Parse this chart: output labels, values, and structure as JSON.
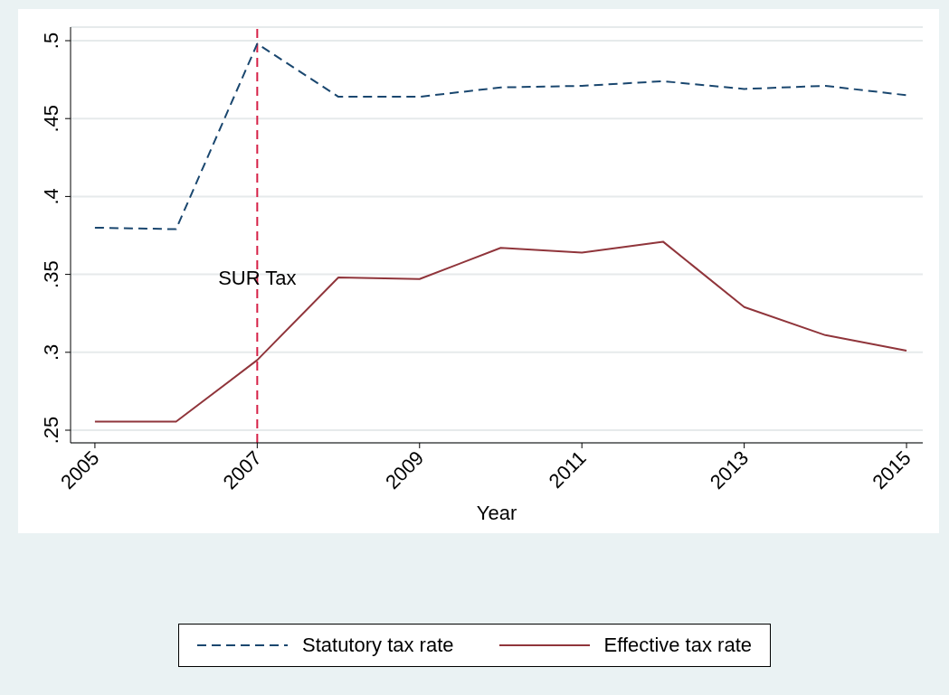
{
  "chart_data": {
    "type": "line",
    "xlabel": "Year",
    "x": [
      2005,
      2006,
      2007,
      2008,
      2009,
      2010,
      2011,
      2012,
      2013,
      2014,
      2015
    ],
    "series": [
      {
        "name": "Statutory tax rate",
        "color": "#1a476f",
        "line_style": "dashed",
        "values": [
          0.38,
          0.379,
          0.498,
          0.464,
          0.464,
          0.47,
          0.471,
          0.474,
          0.469,
          0.471,
          0.465
        ]
      },
      {
        "name": "Effective tax rate",
        "color": "#90353b",
        "line_style": "solid",
        "values": [
          0.2555,
          0.2555,
          0.295,
          0.348,
          0.347,
          0.367,
          0.364,
          0.371,
          0.329,
          0.311,
          0.301
        ]
      }
    ],
    "xlim": [
      2004.7,
      2015.2
    ],
    "xticks": [
      2005,
      2007,
      2009,
      2011,
      2013,
      2015
    ],
    "ylim": [
      0.25,
      0.5
    ],
    "yticks": [
      {
        "value": 0.25,
        "label": ".25"
      },
      {
        "value": 0.3,
        "label": ".3"
      },
      {
        "value": 0.35,
        "label": ".35"
      },
      {
        "value": 0.4,
        "label": ".4"
      },
      {
        "value": 0.45,
        "label": ".45"
      },
      {
        "value": 0.5,
        "label": ".5"
      }
    ],
    "ref_lines": [
      {
        "axis": "x",
        "value": 2007,
        "label": "SUR Tax",
        "color": "#d62046",
        "line_style": "dashed"
      }
    ],
    "grid": "y",
    "legend": "bottom",
    "marker": "none"
  }
}
